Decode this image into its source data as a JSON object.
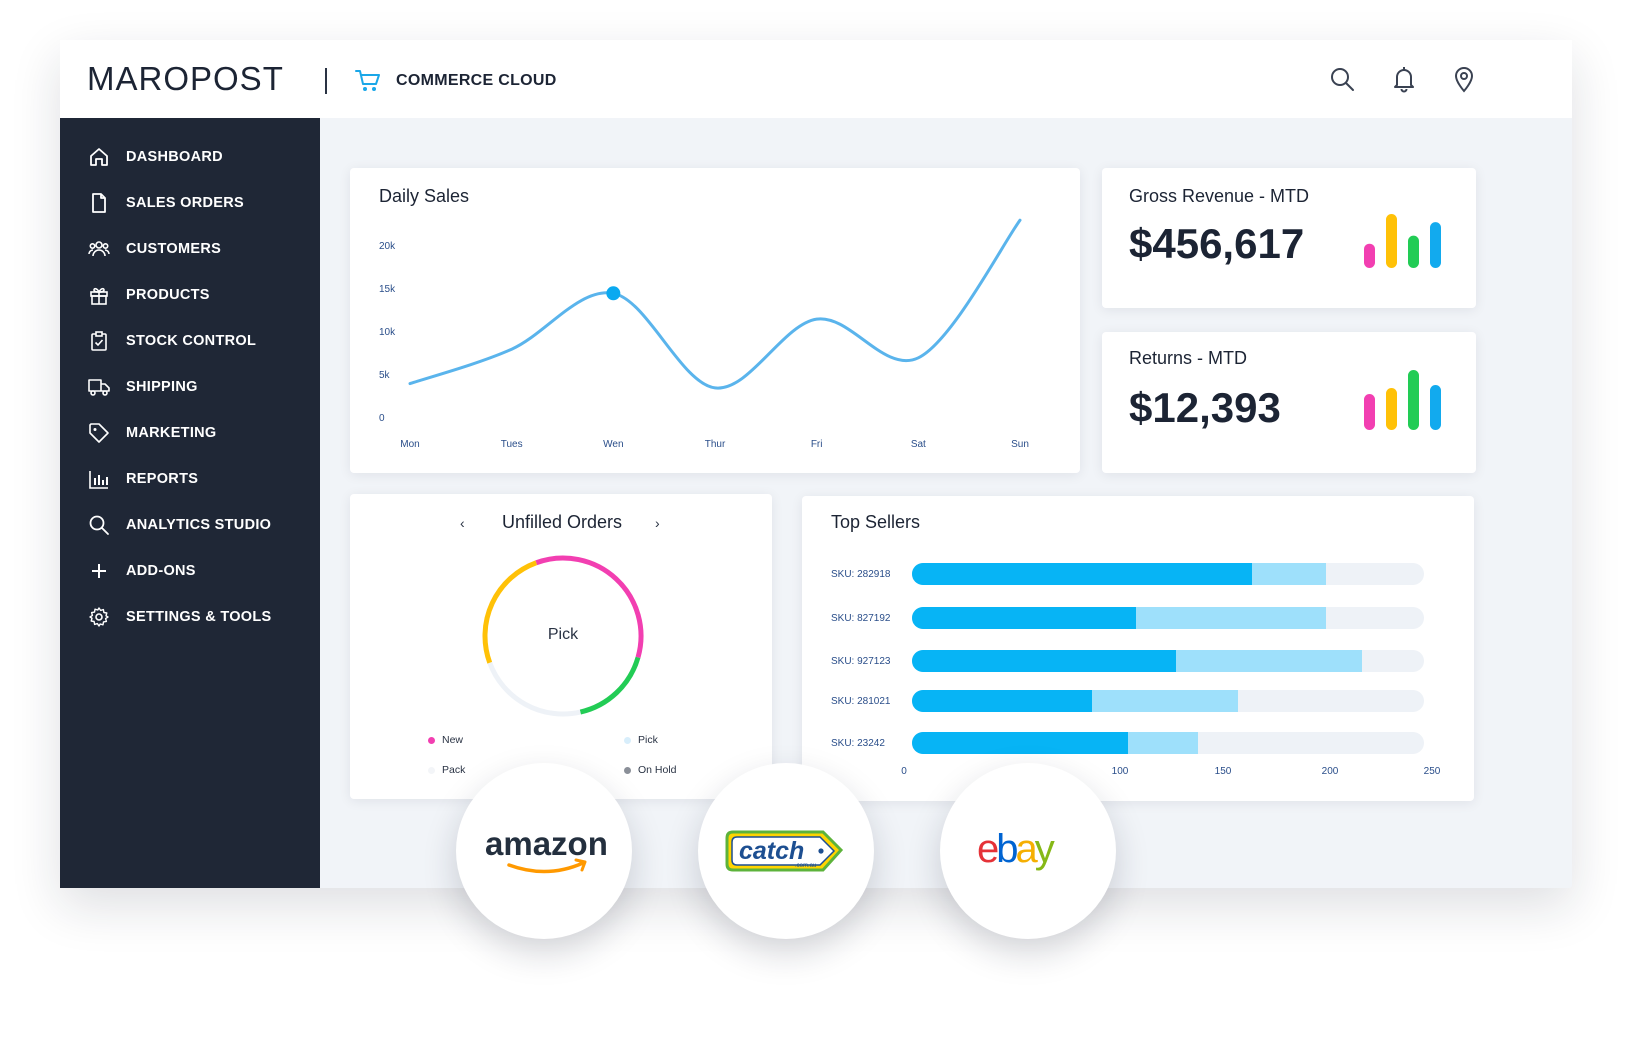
{
  "header": {
    "brand": "MAROPOST",
    "product": "COMMERCE CLOUD",
    "icons": [
      "search-icon",
      "bell-icon",
      "location-pin-icon"
    ]
  },
  "sidebar": {
    "items": [
      {
        "label": "DASHBOARD",
        "icon": "home-icon"
      },
      {
        "label": "SALES ORDERS",
        "icon": "document-icon"
      },
      {
        "label": "CUSTOMERS",
        "icon": "users-icon"
      },
      {
        "label": "PRODUCTS",
        "icon": "gift-icon"
      },
      {
        "label": "STOCK CONTROL",
        "icon": "clipboard-check-icon"
      },
      {
        "label": "SHIPPING",
        "icon": "truck-icon"
      },
      {
        "label": "MARKETING",
        "icon": "tag-icon"
      },
      {
        "label": "REPORTS",
        "icon": "bar-chart-icon"
      },
      {
        "label": "ANALYTICS STUDIO",
        "icon": "search-icon"
      },
      {
        "label": "ADD-ONS",
        "icon": "plus-icon"
      },
      {
        "label": "SETTINGS & TOOLS",
        "icon": "gear-icon"
      }
    ]
  },
  "daily_sales": {
    "title": "Daily Sales"
  },
  "gross_revenue": {
    "title": "Gross Revenue - MTD",
    "value": "$456,617",
    "mini_bars": [
      0.45,
      1.0,
      0.6,
      0.85
    ],
    "mini_colors": [
      "#f23fb1",
      "#ffc107",
      "#22cc55",
      "#12aaee"
    ]
  },
  "returns": {
    "title": "Returns - MTD",
    "value": "$12,393",
    "mini_bars": [
      0.6,
      0.7,
      1.0,
      0.75
    ],
    "mini_colors": [
      "#f23fb1",
      "#ffc107",
      "#22cc55",
      "#12aaee"
    ]
  },
  "unfilled_orders": {
    "title": "Unfilled Orders",
    "prev": "‹",
    "next": "›",
    "center_label": "Pick",
    "legend": [
      {
        "label": "New",
        "color": "#f23fb1"
      },
      {
        "label": "Pick",
        "color": "#d8eefb"
      },
      {
        "label": "Pack",
        "color": "#f3f5f8"
      },
      {
        "label": "On Hold",
        "color": "#8a8f98"
      }
    ]
  },
  "top_sellers": {
    "title": "Top Sellers"
  },
  "marketplaces": [
    {
      "name": "amazon"
    },
    {
      "name": "catch",
      "sub": ".com.au"
    },
    {
      "name": "ebay"
    }
  ],
  "chart_data": [
    {
      "type": "line",
      "title": "Daily Sales",
      "categories": [
        "Mon",
        "Tues",
        "Wen",
        "Thur",
        "Fri",
        "Sat",
        "Sun"
      ],
      "y_ticks": [
        "0",
        "5k",
        "10k",
        "15k",
        "20k"
      ],
      "ylim": [
        0,
        20000
      ],
      "values": [
        4000,
        8000,
        14500,
        3500,
        11500,
        7000,
        23000
      ],
      "highlight_index": 2,
      "color": "#5ab4ec"
    },
    {
      "type": "bar",
      "title": "Top Sellers",
      "orientation": "horizontal",
      "categories": [
        "SKU: 282918",
        "SKU: 827192",
        "SKU: 927123",
        "SKU: 281021",
        "SKU: 23242"
      ],
      "series": [
        {
          "values": [
            165,
            110,
            129,
            89,
            106
          ],
          "color": "#07b4f5"
        },
        {
          "values": [
            200,
            200,
            217,
            158,
            139
          ],
          "color": "#9ee0fb"
        }
      ],
      "x_ticks": [
        "0",
        "100",
        "150",
        "200",
        "250"
      ],
      "xlim": [
        0,
        250
      ]
    },
    {
      "type": "pie",
      "title": "Unfilled Orders",
      "donut": true,
      "labels": [
        "New",
        "Pick",
        "Pack",
        "On Hold"
      ],
      "values": [
        35,
        17,
        23,
        25
      ],
      "colors": [
        "#f23fb1",
        "#22cc55",
        "#eef2f7",
        "#ffc107"
      ]
    }
  ]
}
